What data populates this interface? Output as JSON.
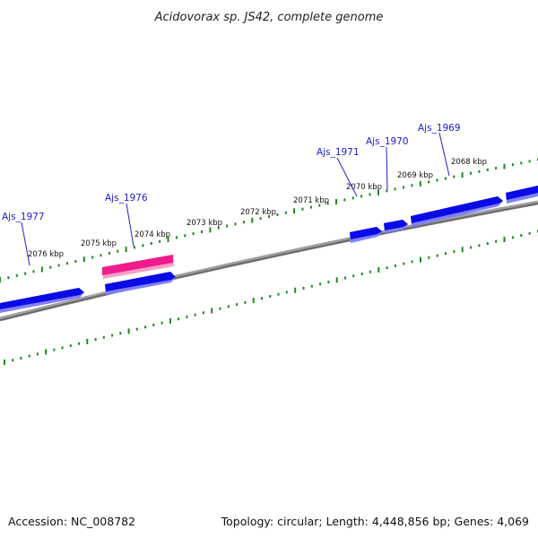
{
  "title": "Acidovorax sp. JS42, complete genome",
  "footer": {
    "accession": "Accession: NC_008782",
    "summary": "Topology: circular; Length: 4,448,856 bp; Genes: 4,069"
  },
  "colors": {
    "forward_gene": "#0a0ae6",
    "highlight_gene": "#f01c8c",
    "backbone": "#808080",
    "tick": "#1d8a1d",
    "gene_label": "#1a1ad0"
  },
  "kbp_labels": [
    "2068 kbp",
    "2069 kbp",
    "2070 kbp",
    "2071 kbp",
    "2072 kbp",
    "2073 kbp",
    "2074 kbp",
    "2075 kbp",
    "2076 kbp"
  ],
  "gene_labels": [
    "Ajs_1969",
    "Ajs_1970",
    "Ajs_1971",
    "Ajs_1976",
    "Ajs_1977"
  ]
}
